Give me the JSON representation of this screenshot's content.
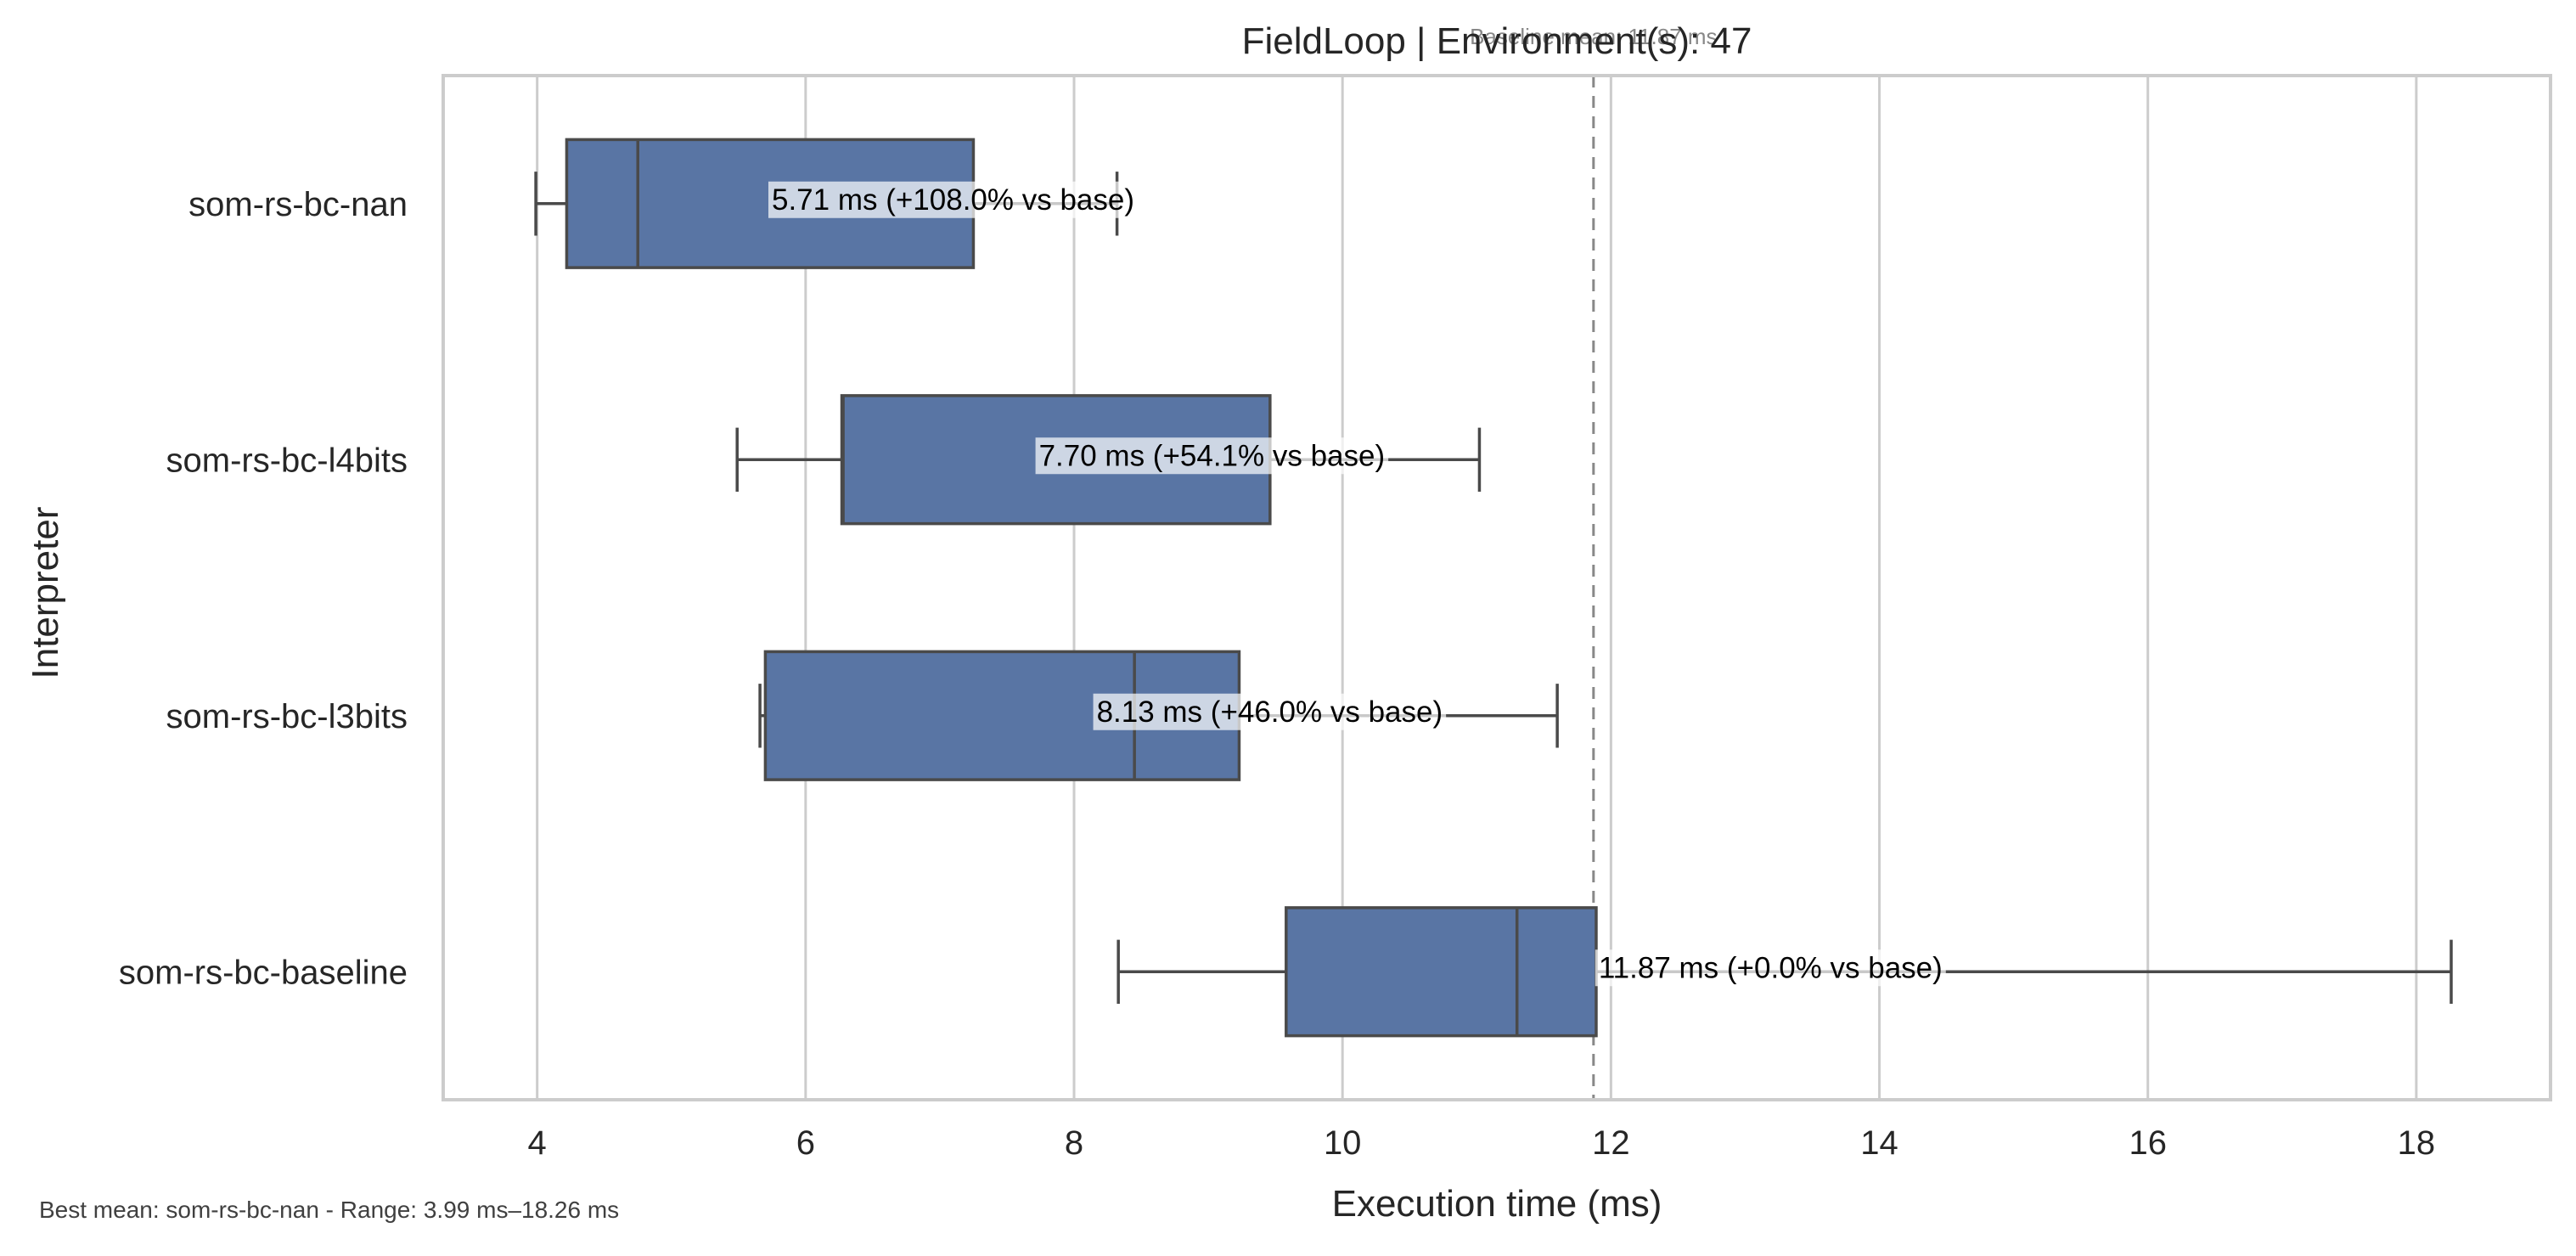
{
  "chart_data": {
    "type": "box",
    "title": "FieldLoop | Environment(s): 47",
    "xlabel": "Execution time (ms)",
    "ylabel": "Interpreter",
    "xlim": [
      3.3,
      19.0
    ],
    "xticks": [
      4,
      6,
      8,
      10,
      12,
      14,
      16,
      18
    ],
    "grid": "vertical",
    "orientation": "horizontal",
    "box_color": "#5975a4",
    "edge_color": "#4a4a4a",
    "reference_line": {
      "value": 11.87,
      "label": "Baseline mean: 11.87 ms",
      "style": "dashed",
      "color": "#888888"
    },
    "series": [
      {
        "category": "som-rs-bc-nan",
        "whisker_low": 3.99,
        "q1": 4.22,
        "median": 4.75,
        "q3": 7.25,
        "whisker_high": 8.32,
        "mean": 5.71,
        "label": "5.71 ms  (+108.0% vs base)"
      },
      {
        "category": "som-rs-bc-l4bits",
        "whisker_low": 5.49,
        "q1": 6.27,
        "median": 6.28,
        "q3": 9.46,
        "whisker_high": 11.02,
        "mean": 7.7,
        "label": "7.70 ms  (+54.1% vs base)"
      },
      {
        "category": "som-rs-bc-l3bits",
        "whisker_low": 5.66,
        "q1": 5.7,
        "median": 8.45,
        "q3": 9.23,
        "whisker_high": 11.6,
        "mean": 8.13,
        "label": "8.13 ms  (+46.0% vs base)"
      },
      {
        "category": "som-rs-bc-baseline",
        "whisker_low": 8.33,
        "q1": 9.58,
        "median": 11.3,
        "q3": 11.89,
        "whisker_high": 18.26,
        "mean": 11.87,
        "label": "11.87 ms  (+0.0% vs base)"
      }
    ],
    "footnote": "Best mean: som-rs-bc-nan - Range: 3.99 ms–18.26 ms"
  }
}
